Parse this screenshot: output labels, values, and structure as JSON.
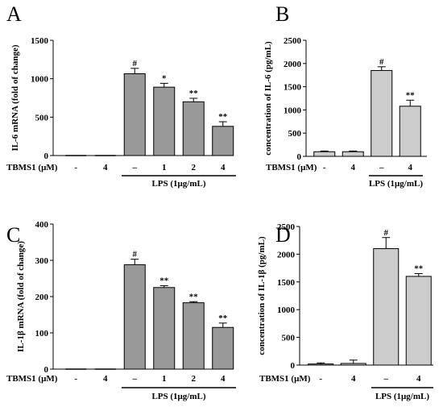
{
  "chart_data": [
    {
      "type": "bar",
      "panel": "A",
      "ylabel": "IL-6 mRNA (fold of change)",
      "ylim": [
        0,
        1500
      ],
      "yticks": [
        0,
        500,
        1000,
        1500
      ],
      "bar_color": "#999999",
      "factor_label": "TBMS1 (μM)",
      "categories": [
        "-",
        "4",
        "–",
        "1",
        "2",
        "4"
      ],
      "values": [
        0,
        0,
        1065,
        890,
        700,
        380
      ],
      "errors": [
        0,
        0,
        70,
        50,
        45,
        60
      ],
      "annotations": [
        "",
        "",
        "#",
        "*",
        "**",
        "**"
      ],
      "lps_label": "LPS (1μg/mL)",
      "lps_span": [
        2,
        5
      ]
    },
    {
      "type": "bar",
      "panel": "B",
      "ylabel": "concentration of IL-6 (pg/mL)",
      "ylim": [
        0,
        2500
      ],
      "yticks": [
        0,
        500,
        1000,
        1500,
        2000,
        2500
      ],
      "bar_color": "#cccccc",
      "factor_label": "TBMS1 (μM)",
      "categories": [
        "-",
        "4",
        "–",
        "4"
      ],
      "values": [
        100,
        100,
        1850,
        1080
      ],
      "errors": [
        15,
        15,
        80,
        130
      ],
      "annotations": [
        "",
        "",
        "#",
        "**"
      ],
      "lps_label": "LPS (1μg/mL)",
      "lps_span": [
        2,
        3
      ]
    },
    {
      "type": "bar",
      "panel": "C",
      "ylabel": "IL-1β mRNA (fold of change)",
      "ylim": [
        0,
        400
      ],
      "yticks": [
        0,
        100,
        200,
        300,
        400
      ],
      "bar_color": "#999999",
      "factor_label": "TBMS1 (μM)",
      "categories": [
        "-",
        "4",
        "–",
        "1",
        "2",
        "4"
      ],
      "values": [
        0,
        0,
        288,
        225,
        183,
        115
      ],
      "errors": [
        0,
        0,
        15,
        5,
        3,
        12
      ],
      "annotations": [
        "",
        "",
        "#",
        "**",
        "**",
        "**"
      ],
      "lps_label": "LPS (1μg/mL)",
      "lps_span": [
        2,
        5
      ]
    },
    {
      "type": "bar",
      "panel": "D",
      "ylabel": "concentration of IL-1β (pg/mL)",
      "ylim": [
        0,
        2500
      ],
      "yticks": [
        0,
        500,
        1000,
        1500,
        2000,
        2500
      ],
      "bar_color": "#cccccc",
      "factor_label": "TBMS1 (μM)",
      "categories": [
        "-",
        "4",
        "–",
        "4"
      ],
      "values": [
        20,
        30,
        2100,
        1600
      ],
      "errors": [
        20,
        60,
        200,
        50
      ],
      "annotations": [
        "",
        "",
        "#",
        "**"
      ],
      "lps_label": "LPS (1μg/mL)",
      "lps_span": [
        2,
        3
      ]
    }
  ]
}
